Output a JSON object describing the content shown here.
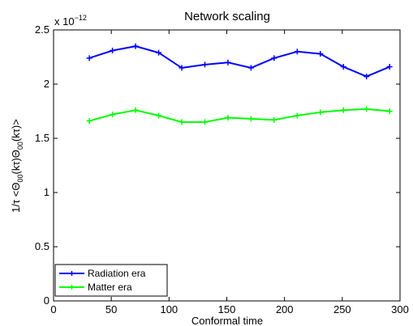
{
  "chart_data": {
    "type": "line",
    "title": "Network scaling",
    "xlabel": "Conformal time",
    "ylabel": "1/τ <Θ00(kτ)Θ00(kτ)>",
    "ylabel_parts": {
      "prefix": "1/τ <Θ",
      "sub1": "00",
      "mid1": "(kτ)Θ",
      "sub2": "00",
      "suffix": "(kτ)>"
    },
    "y_multiplier_base": "x 10",
    "y_multiplier_exp": "−12",
    "xlim": [
      0,
      300
    ],
    "ylim": [
      0,
      2.5
    ],
    "xticks": [
      0,
      50,
      100,
      150,
      200,
      250,
      300
    ],
    "xtick_labels": [
      "0",
      "50",
      "100",
      "150",
      "200",
      "250",
      "300"
    ],
    "yticks": [
      0,
      0.5,
      1,
      1.5,
      2,
      2.5
    ],
    "ytick_labels": [
      "0",
      "0.5",
      "1",
      "1.5",
      "2",
      "2.5"
    ],
    "grid": false,
    "legend_position": "bottom-left",
    "x": [
      31,
      51,
      71,
      91,
      111,
      131,
      151,
      171,
      191,
      211,
      231,
      251,
      271,
      291
    ],
    "series": [
      {
        "name": "Radiation era",
        "color": "#0000ff",
        "marker": "+",
        "values": [
          2.24,
          2.31,
          2.35,
          2.29,
          2.15,
          2.18,
          2.2,
          2.15,
          2.24,
          2.3,
          2.28,
          2.16,
          2.07,
          2.16
        ]
      },
      {
        "name": "Matter era",
        "color": "#00ff00",
        "marker": "+",
        "values": [
          1.66,
          1.72,
          1.76,
          1.71,
          1.65,
          1.65,
          1.69,
          1.68,
          1.67,
          1.71,
          1.74,
          1.76,
          1.77,
          1.75
        ]
      }
    ]
  }
}
